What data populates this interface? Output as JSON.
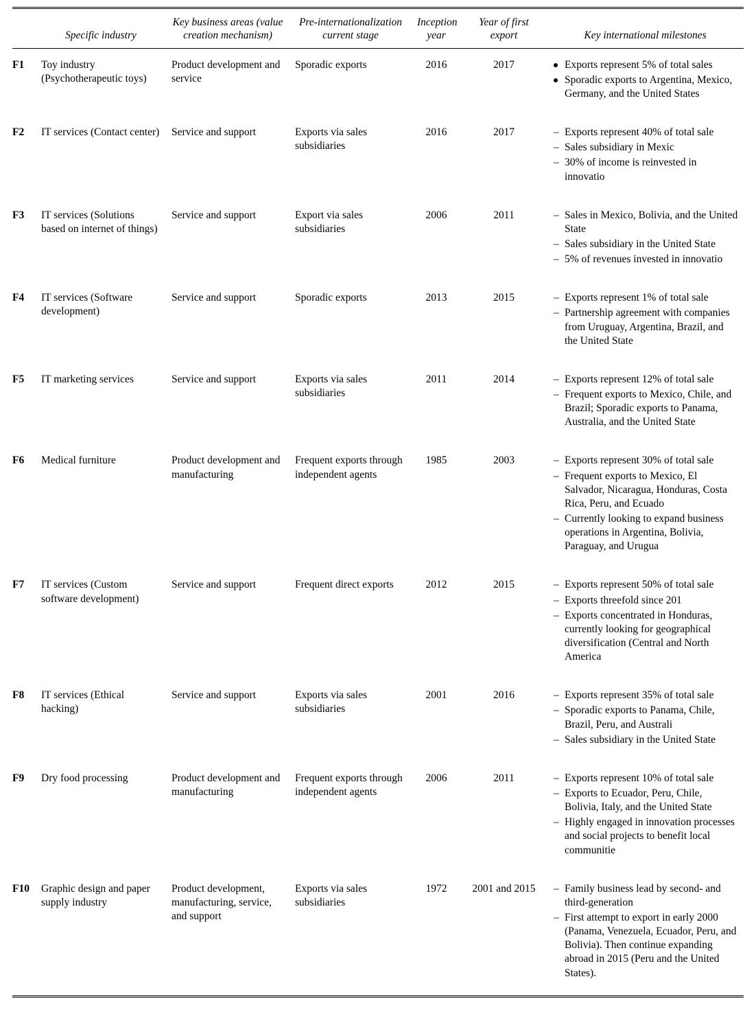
{
  "columns": [
    "Specific industry",
    "Key business areas (value creation mechanism)",
    "Pre-internationalization current stage",
    "Inception year",
    "Year of first export",
    "Key international milestones"
  ],
  "rows": [
    {
      "id": "F1",
      "industry": "Toy industry (Psychotherapeutic toys)",
      "key_area": "Product development and service",
      "stage": "Sporadic exports",
      "inception": "2016",
      "first_export": "2017",
      "bullet_style": "bullet",
      "milestones": [
        "Exports represent 5% of total sales",
        "Sporadic exports to Argentina, Mexico, Germany, and the United States"
      ]
    },
    {
      "id": "F2",
      "industry": "IT services (Contact center)",
      "key_area": "Service and support",
      "stage": "Exports via sales subsidiaries",
      "inception": "2016",
      "first_export": "2017",
      "bullet_style": "dash",
      "milestones": [
        "Exports represent 40% of total sale",
        "Sales subsidiary in Mexic",
        "30% of income is reinvested in innovatio"
      ]
    },
    {
      "id": "F3",
      "industry": "IT services (Solutions based on internet of things)",
      "key_area": "Service and support",
      "stage": "Export via sales subsidiaries",
      "inception": "2006",
      "first_export": "2011",
      "bullet_style": "dash",
      "milestones": [
        "Sales in Mexico, Bolivia, and the United State",
        "Sales subsidiary in the United State",
        "5% of revenues invested in innovatio"
      ]
    },
    {
      "id": "F4",
      "industry": "IT services (Software development)",
      "key_area": "Service and support",
      "stage": "Sporadic exports",
      "inception": "2013",
      "first_export": "2015",
      "bullet_style": "dash",
      "milestones": [
        "Exports represent 1% of total sale",
        "Partnership agreement with companies from Uruguay, Argentina, Brazil, and the United State"
      ]
    },
    {
      "id": "F5",
      "industry": "IT marketing services",
      "key_area": "Service and support",
      "stage": "Exports via sales subsidiaries",
      "inception": "2011",
      "first_export": "2014",
      "bullet_style": "dash",
      "milestones": [
        "Exports represent 12% of total sale",
        "Frequent exports to Mexico, Chile, and Brazil; Sporadic exports to Panama, Australia, and the United State"
      ]
    },
    {
      "id": "F6",
      "industry": "Medical furniture",
      "key_area": "Product development and manufacturing",
      "stage": "Frequent exports through independent agents",
      "inception": "1985",
      "first_export": "2003",
      "bullet_style": "dash",
      "milestones": [
        "Exports represent 30% of total sale",
        "Frequent exports to Mexico, El Salvador, Nicaragua, Honduras, Costa Rica, Peru, and Ecuado",
        "Currently looking to expand business operations in Argentina, Bolivia, Paraguay, and Urugua"
      ]
    },
    {
      "id": "F7",
      "industry": "IT services (Custom software development)",
      "key_area": "Service and support",
      "stage": "Frequent direct exports",
      "inception": "2012",
      "first_export": "2015",
      "bullet_style": "dash",
      "milestones": [
        "Exports represent 50% of total sale",
        "Exports threefold since 201",
        "Exports concentrated in Honduras, currently looking for geographical diversification (Central and North America"
      ]
    },
    {
      "id": "F8",
      "industry": "IT services (Ethical hacking)",
      "key_area": "Service and support",
      "stage": "Exports via sales subsidiaries",
      "inception": "2001",
      "first_export": "2016",
      "bullet_style": "dash",
      "milestones": [
        "Exports represent 35% of total sale",
        "Sporadic exports to Panama, Chile, Brazil, Peru, and Australi",
        "Sales subsidiary in the United State"
      ]
    },
    {
      "id": "F9",
      "industry": "Dry food processing",
      "key_area": "Product development and manufacturing",
      "stage": "Frequent exports through independent agents",
      "inception": "2006",
      "first_export": "2011",
      "bullet_style": "dash",
      "milestones": [
        "Exports represent 10% of total sale",
        "Exports to Ecuador, Peru, Chile, Bolivia, Italy, and the United State",
        "Highly engaged in innovation processes and social projects to benefit local communitie"
      ]
    },
    {
      "id": "F10",
      "industry": "Graphic design and paper supply industry",
      "key_area": "Product development, manufacturing, service, and support",
      "stage": "Exports via sales subsidiaries",
      "inception": "1972",
      "first_export": "2001 and 2015",
      "bullet_style": "dash",
      "milestones": [
        "Family business lead by second- and third-generation",
        "First attempt to export in early 2000 (Panama, Venezuela, Ecuador, Peru, and Bolivia). Then continue expanding abroad in 2015 (Peru and the United States)."
      ]
    }
  ]
}
